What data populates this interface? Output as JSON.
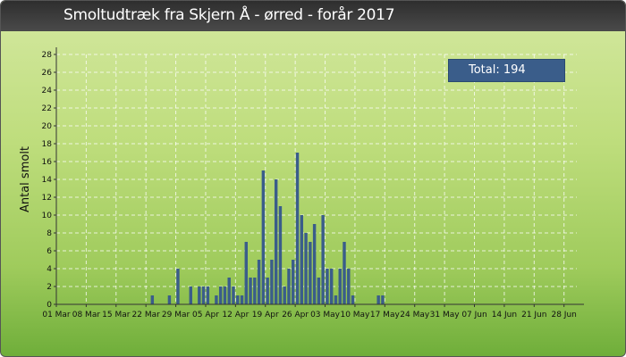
{
  "title": "Smoltudtræk fra Skjern Å - ørred - forår 2017",
  "total_label": "Total: 194",
  "colors": {
    "bar": "#3a5d8a",
    "grid": "#ffffff",
    "axis": "#333333"
  },
  "chart_data": {
    "type": "bar",
    "title": "Smoltudtræk fra Skjern Å - ørred - forår 2017",
    "ylabel": "Antal smolt",
    "xlabel": "",
    "ylim": [
      0,
      28
    ],
    "yticks": [
      0,
      2,
      4,
      6,
      8,
      10,
      12,
      14,
      16,
      18,
      20,
      22,
      24,
      26,
      28
    ],
    "x_start_date": "2017-03-01",
    "x_end_date": "2017-07-01",
    "xtick_labels": [
      "01 Mar",
      "08 Mar",
      "15 Mar",
      "22 Mar",
      "29 Mar",
      "05 Apr",
      "12 Apr",
      "19 Apr",
      "26 Apr",
      "03 May",
      "10 May",
      "17 May",
      "24 May",
      "31 May",
      "07 Jun",
      "14 Jun",
      "21 Jun",
      "28 Jun"
    ],
    "xtick_dates": [
      "2017-03-01",
      "2017-03-08",
      "2017-03-15",
      "2017-03-22",
      "2017-03-29",
      "2017-04-05",
      "2017-04-12",
      "2017-04-19",
      "2017-04-26",
      "2017-05-03",
      "2017-05-10",
      "2017-05-17",
      "2017-05-24",
      "2017-05-31",
      "2017-06-07",
      "2017-06-14",
      "2017-06-21",
      "2017-06-28"
    ],
    "grid": true,
    "dates": [
      "2017-03-23",
      "2017-03-27",
      "2017-03-29",
      "2017-04-01",
      "2017-04-03",
      "2017-04-04",
      "2017-04-05",
      "2017-04-07",
      "2017-04-08",
      "2017-04-09",
      "2017-04-10",
      "2017-04-11",
      "2017-04-12",
      "2017-04-13",
      "2017-04-14",
      "2017-04-15",
      "2017-04-16",
      "2017-04-17",
      "2017-04-18",
      "2017-04-19",
      "2017-04-20",
      "2017-04-21",
      "2017-04-22",
      "2017-04-23",
      "2017-04-24",
      "2017-04-25",
      "2017-04-26",
      "2017-04-27",
      "2017-04-28",
      "2017-04-29",
      "2017-04-30",
      "2017-05-01",
      "2017-05-02",
      "2017-05-03",
      "2017-05-04",
      "2017-05-05",
      "2017-05-06",
      "2017-05-07",
      "2017-05-08",
      "2017-05-09",
      "2017-05-10",
      "2017-05-15",
      "2017-05-16"
    ],
    "values": [
      1,
      1,
      4,
      2,
      2,
      2,
      2,
      1,
      2,
      2,
      3,
      2,
      1,
      1,
      7,
      3,
      3,
      5,
      15,
      3,
      5,
      14,
      11,
      2,
      4,
      5,
      17,
      10,
      8,
      7,
      9,
      3,
      10,
      4,
      4,
      1,
      4,
      7,
      4,
      1,
      0,
      1,
      1
    ]
  }
}
